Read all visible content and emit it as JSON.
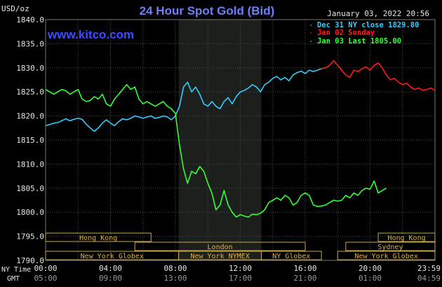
{
  "header": {
    "unit_label": "USD/oz",
    "title": "24 Hour Spot Gold (Bid)",
    "watermark": "www.kitco.com",
    "timestamp": "January 03, 2022 20:56"
  },
  "legend": [
    {
      "label": "Dec 31 NY close 1829.80",
      "color": "#33ccff"
    },
    {
      "label": "Jan 02 Sunday",
      "color": "#ff1a1a"
    },
    {
      "label": "Jan 03 Last 1805.00",
      "color": "#33ff33"
    }
  ],
  "time_axis": {
    "row1_label": "NY Time",
    "row2_label": "GMT",
    "ny_ticks": [
      "00:00",
      "04:00",
      "08:00",
      "12:00",
      "16:00",
      "20:00",
      "23:59"
    ],
    "gmt_ticks": [
      "05:00",
      "09:00",
      "13:00",
      "17:00",
      "21:00",
      "01:00",
      "04:59"
    ]
  },
  "sessions": [
    {
      "label": "Hong Kong",
      "start": 0,
      "end": 6.5,
      "row": 0
    },
    {
      "label": "Hong Kong",
      "start": 20.5,
      "end": 24,
      "row": 0
    },
    {
      "label": "London",
      "start": 5.5,
      "end": 16,
      "row": 1
    },
    {
      "label": "Sydney",
      "start": 18.5,
      "end": 24,
      "row": 1
    },
    {
      "label": "New York Globex",
      "start": 0,
      "end": 8.2,
      "row": 2
    },
    {
      "label": "New York NYMEX",
      "start": 8.2,
      "end": 13.3,
      "row": 2
    },
    {
      "label": "NY Globex",
      "start": 13.3,
      "end": 17,
      "row": 2
    },
    {
      "label": "New York Globex",
      "start": 18,
      "end": 24,
      "row": 2
    }
  ],
  "chart_data": {
    "type": "line",
    "title": "24 Hour Spot Gold (Bid)",
    "ylabel": "USD/oz",
    "xlabel": "NY Time",
    "ylim": [
      1790,
      1840
    ],
    "xlim_hours": [
      0,
      24
    ],
    "y_ticks": [
      "1840.0",
      "1835.0",
      "1830.0",
      "1825.0",
      "1820.0",
      "1815.0",
      "1810.0",
      "1805.0",
      "1800.0",
      "1795.0",
      "1790.0"
    ],
    "nymex_shade_hours": [
      8.2,
      13.3
    ],
    "grid": true,
    "series": [
      {
        "name": "Dec 31 NY close 1829.80",
        "color": "#33ccff",
        "x": [
          0,
          0.25,
          0.5,
          0.75,
          1,
          1.25,
          1.5,
          1.75,
          2,
          2.25,
          2.5,
          2.75,
          3,
          3.25,
          3.5,
          3.75,
          4,
          4.25,
          4.5,
          4.75,
          5,
          5.25,
          5.5,
          5.75,
          6,
          6.25,
          6.5,
          6.75,
          7,
          7.25,
          7.5,
          7.75,
          8,
          8.25,
          8.5,
          8.75,
          9,
          9.25,
          9.5,
          9.75,
          10,
          10.25,
          10.5,
          10.75,
          11,
          11.25,
          11.5,
          11.75,
          12,
          12.25,
          12.5,
          12.75,
          13,
          13.25,
          13.5,
          13.75,
          14,
          14.25,
          14.5,
          14.75,
          15,
          15.25,
          15.5,
          15.75,
          16,
          16.25,
          16.5,
          16.75,
          17
        ],
        "y": [
          1818.0,
          1818.2,
          1818.5,
          1818.6,
          1819.0,
          1819.4,
          1819.0,
          1819.3,
          1819.5,
          1819.3,
          1818.3,
          1817.5,
          1816.8,
          1817.5,
          1818.5,
          1819.2,
          1818.5,
          1818.0,
          1818.8,
          1819.4,
          1819.2,
          1819.5,
          1820.0,
          1819.8,
          1819.5,
          1819.8,
          1820.0,
          1819.5,
          1819.7,
          1820.0,
          1819.8,
          1819.2,
          1820.0,
          1822.0,
          1826.0,
          1827.0,
          1825.0,
          1826.0,
          1824.5,
          1822.5,
          1822.0,
          1823.0,
          1822.0,
          1821.5,
          1823.0,
          1823.8,
          1822.5,
          1824.0,
          1825.0,
          1825.3,
          1825.8,
          1826.5,
          1826.0,
          1825.0,
          1826.5,
          1827.0,
          1827.8,
          1828.2,
          1827.5,
          1828.0,
          1827.3,
          1828.5,
          1829.0,
          1829.3,
          1828.8,
          1829.5,
          1829.2,
          1829.5,
          1829.8
        ]
      },
      {
        "name": "Jan 02 Sunday",
        "color": "#ff1a1a",
        "x": [
          17,
          17.25,
          17.5,
          17.75,
          18,
          18.25,
          18.5,
          18.75,
          19,
          19.25,
          19.5,
          19.75,
          20,
          20.25,
          20.5,
          20.75,
          21,
          21.25,
          21.5,
          21.75,
          22,
          22.25,
          22.5,
          22.75,
          23,
          23.25,
          23.5,
          23.75,
          24
        ],
        "y": [
          1829.8,
          1830.0,
          1830.5,
          1831.5,
          1830.5,
          1829.5,
          1828.5,
          1828.0,
          1829.5,
          1829.2,
          1829.8,
          1830.2,
          1829.5,
          1830.5,
          1831.0,
          1830.0,
          1828.5,
          1827.5,
          1827.8,
          1827.0,
          1826.5,
          1826.8,
          1826.0,
          1825.5,
          1825.8,
          1825.3,
          1825.5,
          1825.8,
          1825.3
        ]
      },
      {
        "name": "Jan 03 Last 1805.00",
        "color": "#33ff33",
        "x": [
          0,
          0.25,
          0.5,
          0.75,
          1,
          1.25,
          1.5,
          1.75,
          2,
          2.25,
          2.5,
          2.75,
          3,
          3.25,
          3.5,
          3.75,
          4,
          4.25,
          4.5,
          4.75,
          5,
          5.25,
          5.5,
          5.75,
          6,
          6.25,
          6.5,
          6.75,
          7,
          7.25,
          7.5,
          7.75,
          8,
          8.25,
          8.5,
          8.75,
          9,
          9.25,
          9.5,
          9.75,
          10,
          10.25,
          10.5,
          10.75,
          11,
          11.25,
          11.5,
          11.75,
          12,
          12.25,
          12.5,
          12.75,
          13,
          13.25,
          13.5,
          13.75,
          14,
          14.25,
          14.5,
          14.75,
          15,
          15.25,
          15.5,
          15.75,
          16,
          16.25,
          16.5,
          16.75,
          17,
          17.25,
          17.5,
          17.75,
          18,
          18.25,
          18.5,
          18.75,
          19,
          19.25,
          19.5,
          19.75,
          20,
          20.25,
          20.5,
          20.75,
          21
        ],
        "y": [
          1825.5,
          1825.0,
          1824.5,
          1825.0,
          1825.5,
          1825.2,
          1824.5,
          1825.0,
          1825.5,
          1823.5,
          1823.0,
          1823.2,
          1824.0,
          1823.5,
          1824.5,
          1822.5,
          1822.0,
          1823.5,
          1824.5,
          1825.5,
          1826.5,
          1825.5,
          1826.0,
          1823.5,
          1822.5,
          1823.0,
          1822.5,
          1822.0,
          1822.5,
          1823.0,
          1822.0,
          1821.5,
          1820.5,
          1814.0,
          1809.0,
          1806.0,
          1808.5,
          1808.0,
          1809.5,
          1808.5,
          1806.0,
          1804.0,
          1800.5,
          1801.5,
          1804.5,
          1801.5,
          1800.0,
          1799.0,
          1799.5,
          1799.2,
          1799.0,
          1799.6,
          1799.5,
          1799.8,
          1800.5,
          1802.0,
          1802.5,
          1803.0,
          1802.5,
          1803.5,
          1803.0,
          1801.5,
          1802.0,
          1803.5,
          1804.0,
          1803.5,
          1801.5,
          1801.2,
          1801.3,
          1801.5,
          1802.0,
          1802.5,
          1802.3,
          1802.5,
          1803.5,
          1803.0,
          1804.0,
          1803.5,
          1804.5,
          1805.0,
          1804.8,
          1806.5,
          1804.0,
          1804.5,
          1805.0
        ]
      }
    ]
  }
}
